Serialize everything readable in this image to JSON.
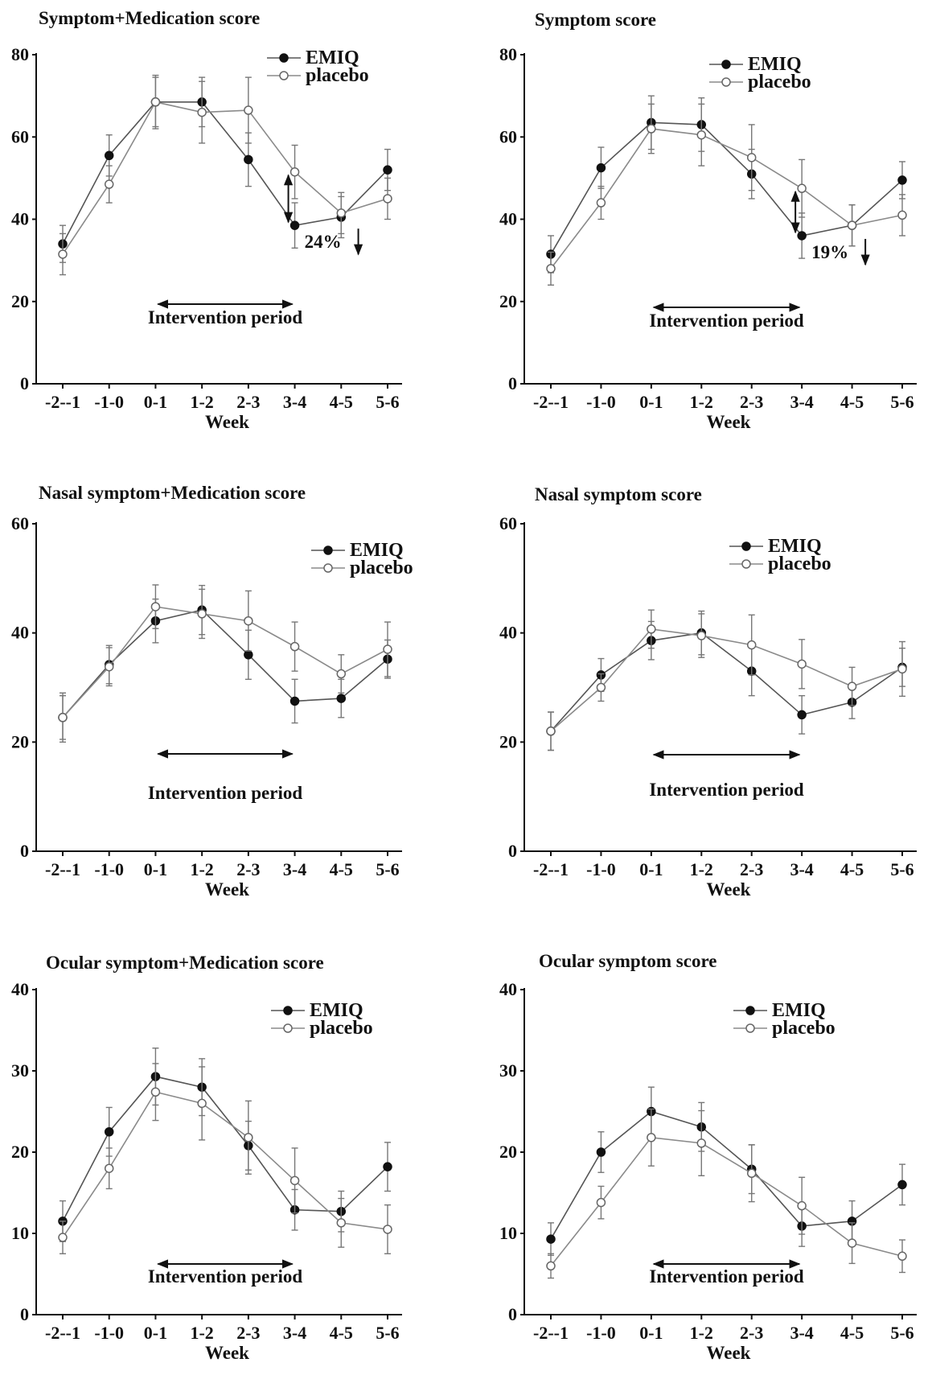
{
  "chart_data": [
    {
      "type": "line",
      "title": "Symptom+Medication score",
      "xlabel": "Week",
      "ylabel": "",
      "categories": [
        "-2--1",
        "-1-0",
        "0-1",
        "1-2",
        "2-3",
        "3-4",
        "4-5",
        "5-6"
      ],
      "ylim": [
        0,
        80
      ],
      "yticks": [
        0,
        20,
        40,
        60,
        80
      ],
      "legend_position": "top-right",
      "series": [
        {
          "name": "EMIQ",
          "marker": "filled",
          "values": [
            34,
            55.5,
            68.5,
            68.5,
            54.5,
            38.5,
            40.5,
            52
          ],
          "errors": [
            4.5,
            5,
            6,
            6,
            6.5,
            5.5,
            5,
            5
          ]
        },
        {
          "name": "placebo",
          "marker": "open",
          "values": [
            31.5,
            48.5,
            68.5,
            66,
            66.5,
            51.5,
            41.5,
            45
          ],
          "errors": [
            5,
            4.5,
            6.5,
            7.5,
            8,
            6.5,
            5,
            5
          ]
        }
      ],
      "intervention": {
        "label": "Intervention period",
        "from": "0-1",
        "to": "3-4"
      },
      "reduction": {
        "label": "24%",
        "at": "3-4"
      }
    },
    {
      "type": "line",
      "title": "Symptom score",
      "xlabel": "Week",
      "ylabel": "",
      "categories": [
        "-2--1",
        "-1-0",
        "0-1",
        "1-2",
        "2-3",
        "3-4",
        "4-5",
        "5-6"
      ],
      "ylim": [
        0,
        80
      ],
      "yticks": [
        0,
        20,
        40,
        60,
        80
      ],
      "legend_position": "top-right",
      "series": [
        {
          "name": "EMIQ",
          "marker": "filled",
          "values": [
            31.5,
            52.5,
            63.5,
            63,
            51,
            36,
            38.5,
            49.5
          ],
          "errors": [
            4.5,
            5,
            6.5,
            6.5,
            6,
            5.5,
            5,
            4.5
          ]
        },
        {
          "name": "placebo",
          "marker": "open",
          "values": [
            28,
            44,
            62,
            60.5,
            55,
            47.5,
            38.5,
            41
          ],
          "errors": [
            4,
            4,
            6,
            7.5,
            8,
            7,
            5,
            5
          ]
        }
      ],
      "intervention": {
        "label": "Intervention period",
        "from": "0-1",
        "to": "3-4"
      },
      "reduction": {
        "label": "19%",
        "at": "3-4"
      }
    },
    {
      "type": "line",
      "title": "Nasal symptom+Medication score",
      "xlabel": "Week",
      "ylabel": "",
      "categories": [
        "-2--1",
        "-1-0",
        "0-1",
        "1-2",
        "2-3",
        "3-4",
        "4-5",
        "5-6"
      ],
      "ylim": [
        0,
        60
      ],
      "yticks": [
        0,
        20,
        40,
        60
      ],
      "legend_position": "top-right",
      "series": [
        {
          "name": "EMIQ",
          "marker": "filled",
          "values": [
            24.5,
            34.2,
            42.2,
            44.2,
            36,
            27.5,
            28,
            35.2
          ],
          "errors": [
            4,
            3.5,
            4,
            4.5,
            4.5,
            4,
            3.5,
            3.5
          ]
        },
        {
          "name": "placebo",
          "marker": "open",
          "values": [
            24.5,
            33.8,
            44.8,
            43.5,
            42.2,
            37.5,
            32.5,
            37
          ],
          "errors": [
            4.5,
            3.5,
            4,
            4.5,
            5.5,
            4.5,
            3.5,
            5
          ]
        }
      ],
      "intervention": {
        "label": "Intervention period",
        "from": "0-1",
        "to": "3-4"
      }
    },
    {
      "type": "line",
      "title": "Nasal symptom score",
      "xlabel": "Week",
      "ylabel": "",
      "categories": [
        "-2--1",
        "-1-0",
        "0-1",
        "1-2",
        "2-3",
        "3-4",
        "4-5",
        "5-6"
      ],
      "ylim": [
        0,
        60
      ],
      "yticks": [
        0,
        20,
        40,
        60
      ],
      "legend_position": "top-right",
      "series": [
        {
          "name": "EMIQ",
          "marker": "filled",
          "values": [
            22,
            32.3,
            38.6,
            40,
            33,
            25,
            27.3,
            33.7
          ],
          "errors": [
            3.5,
            3,
            3.5,
            4,
            4.5,
            3.5,
            3,
            3.5
          ]
        },
        {
          "name": "placebo",
          "marker": "open",
          "values": [
            22,
            30,
            40.7,
            39.5,
            37.8,
            34.3,
            30.2,
            33.4
          ],
          "errors": [
            3.5,
            2.5,
            3.5,
            4,
            5.5,
            4.5,
            3.5,
            5
          ]
        }
      ],
      "intervention": {
        "label": "Intervention period",
        "from": "0-1",
        "to": "3-4"
      }
    },
    {
      "type": "line",
      "title": "Ocular symptom+Medication score",
      "xlabel": "Week",
      "ylabel": "",
      "categories": [
        "-2--1",
        "-1-0",
        "0-1",
        "1-2",
        "2-3",
        "3-4",
        "4-5",
        "5-6"
      ],
      "ylim": [
        0,
        40
      ],
      "yticks": [
        0,
        10,
        20,
        30,
        40
      ],
      "legend_position": "top-right",
      "series": [
        {
          "name": "EMIQ",
          "marker": "filled",
          "values": [
            11.5,
            22.5,
            29.3,
            28,
            20.8,
            12.9,
            12.7,
            18.2
          ],
          "errors": [
            2.5,
            3,
            3.5,
            3.5,
            3,
            2.5,
            2.5,
            3
          ]
        },
        {
          "name": "placebo",
          "marker": "open",
          "values": [
            9.5,
            18,
            27.4,
            26,
            21.8,
            16.5,
            11.3,
            10.5
          ],
          "errors": [
            2,
            2.5,
            3.5,
            4.5,
            4.5,
            4,
            3,
            3
          ]
        }
      ],
      "intervention": {
        "label": "Intervention period",
        "from": "0-1",
        "to": "3-4"
      }
    },
    {
      "type": "line",
      "title": "Ocular symptom score",
      "xlabel": "Week",
      "ylabel": "",
      "categories": [
        "-2--1",
        "-1-0",
        "0-1",
        "1-2",
        "2-3",
        "3-4",
        "4-5",
        "5-6"
      ],
      "ylim": [
        0,
        40
      ],
      "yticks": [
        0,
        10,
        20,
        30,
        40
      ],
      "legend_position": "top-right",
      "series": [
        {
          "name": "EMIQ",
          "marker": "filled",
          "values": [
            9.3,
            20,
            25,
            23.1,
            17.9,
            10.9,
            11.5,
            16
          ],
          "errors": [
            2,
            2.5,
            3,
            3,
            3,
            2.5,
            2.5,
            2.5
          ]
        },
        {
          "name": "placebo",
          "marker": "open",
          "values": [
            6,
            13.8,
            21.8,
            21.1,
            17.4,
            13.4,
            8.8,
            7.2
          ],
          "errors": [
            1.5,
            2,
            3.5,
            4,
            3.5,
            3.5,
            2.5,
            2
          ]
        }
      ],
      "intervention": {
        "label": "Intervention period",
        "from": "0-1",
        "to": "3-4"
      }
    }
  ]
}
